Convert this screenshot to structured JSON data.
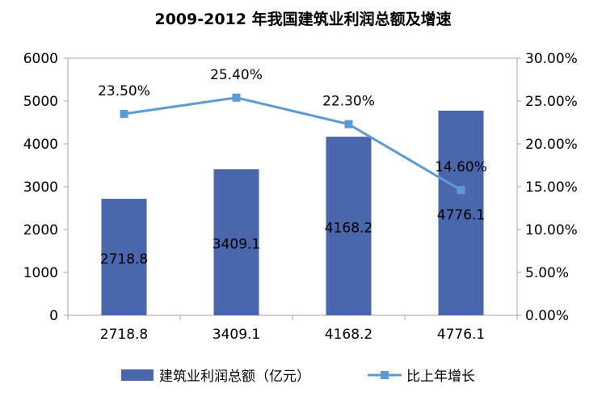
{
  "chart_data": {
    "type": "bar",
    "title": "2009-2012 年我国建筑业利润总额及增速",
    "categories": [
      "2718.8",
      "3409.1",
      "4168.2",
      "4776.1"
    ],
    "series": [
      {
        "name": "建筑业利润总额（亿元）",
        "kind": "bar",
        "axis": "left",
        "values": [
          2718.8,
          3409.1,
          4168.2,
          4776.1
        ],
        "labels": [
          "2718.8",
          "3409.1",
          "4168.2",
          "4776.1"
        ],
        "color": "#4a66ad"
      },
      {
        "name": "比上年增长",
        "kind": "line",
        "axis": "right",
        "values": [
          23.5,
          25.4,
          22.3,
          14.6
        ],
        "labels": [
          "23.50%",
          "25.40%",
          "22.30%",
          "14.60%"
        ],
        "color": "#5b9bd5"
      }
    ],
    "y_left": {
      "ylim": [
        0,
        6000
      ],
      "ticks": [
        "0",
        "1000",
        "2000",
        "3000",
        "4000",
        "5000",
        "6000"
      ]
    },
    "y_right": {
      "ylim": [
        0,
        30
      ],
      "ticks": [
        "0.00%",
        "5.00%",
        "10.00%",
        "15.00%",
        "20.00%",
        "25.00%",
        "30.00%"
      ]
    },
    "legend_position": "bottom",
    "grid": false
  }
}
